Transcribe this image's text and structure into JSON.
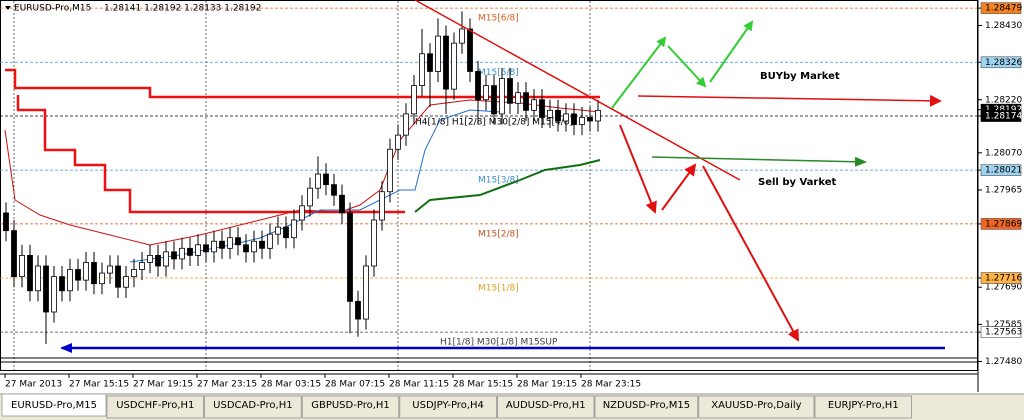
{
  "header": {
    "symbol": "EURUSD-Pro,M15",
    "quote": "1.28141 1.28192 1.28133 1.28192"
  },
  "chart_data": {
    "type": "candlestick",
    "ylim": [
      1.27456,
      1.28502
    ],
    "yticks": [
      1.28479,
      {
        "value": 1.2843,
        "label": "1.28430"
      },
      1.28326,
      {
        "value": 1.2822,
        "label": "1.28220"
      },
      1.28192,
      1.28174,
      {
        "value": 1.2807,
        "label": "1.28070"
      },
      1.28021,
      1.27965,
      1.27869,
      1.27716,
      {
        "value": 1.2769,
        "label": "1.27690"
      },
      1.27585,
      1.27563,
      {
        "value": 1.2748,
        "label": "1.27480"
      }
    ],
    "price_markers": [
      {
        "value": 1.28479,
        "color": "#f58220"
      },
      {
        "value": 1.28326,
        "color": "#9fd3f2"
      },
      {
        "value": 1.28192,
        "color": "#000000"
      },
      {
        "value": 1.28174,
        "color": "#000000"
      },
      {
        "value": 1.28021,
        "color": "#9fd3f2"
      },
      {
        "value": 1.27869,
        "color": "#f26522"
      },
      {
        "value": 1.27716,
        "color": "#ffb347"
      },
      {
        "value": 1.27563,
        "color": "#ffffff"
      }
    ],
    "categories": [
      "27 Mar 2013",
      "27 Mar 15:15",
      "27 Mar 19:15",
      "27 Mar 23:15",
      "28 Mar 03:15",
      "28 Mar 07:15",
      "28 Mar 11:15",
      "28 Mar 15:15",
      "28 Mar 19:15",
      "28 Mar 23:15"
    ],
    "levels": [
      {
        "label": "M15[6/8]",
        "value": 1.28479,
        "color": "#e0601a"
      },
      {
        "label": "M15[5/8]",
        "value": 1.28326,
        "color": "#3c8fd0"
      },
      {
        "label": "H4[1/8] H1[2/8] M30[2/8] M15[4/8]",
        "value": 1.28174,
        "color": "#000000"
      },
      {
        "label": "M15[3/8]",
        "value": 1.28021,
        "color": "#3c8fd0"
      },
      {
        "label": "M15[2/8]",
        "value": 1.27869,
        "color": "#c8501e"
      },
      {
        "label": "M15[1/8]",
        "value": 1.27716,
        "color": "#e0a020"
      },
      {
        "label": "H1[1/8] M30[1/8] M15SUP",
        "value": 1.27563,
        "color": "#404040"
      }
    ],
    "annotations": [
      "BUYby Market",
      "Sell by Varket"
    ],
    "up_color": "#000000",
    "down_color": "#000000",
    "candles": [
      [
        1.279,
        1.2793,
        1.2782,
        1.2785
      ],
      [
        1.2785,
        1.2788,
        1.2769,
        1.2772
      ],
      [
        1.2772,
        1.2781,
        1.2769,
        1.2778
      ],
      [
        1.2778,
        1.2781,
        1.2765,
        1.2768
      ],
      [
        1.2768,
        1.2778,
        1.2765,
        1.2775
      ],
      [
        1.2775,
        1.2778,
        1.2753,
        1.2762
      ],
      [
        1.2762,
        1.2775,
        1.2759,
        1.2772
      ],
      [
        1.2772,
        1.2775,
        1.2765,
        1.2768
      ],
      [
        1.2768,
        1.2777,
        1.2765,
        1.2774
      ],
      [
        1.2774,
        1.2777,
        1.2768,
        1.2771
      ],
      [
        1.2771,
        1.2779,
        1.2768,
        1.2776
      ],
      [
        1.2776,
        1.2779,
        1.2767,
        1.277
      ],
      [
        1.277,
        1.2776,
        1.2767,
        1.2773
      ],
      [
        1.2773,
        1.2778,
        1.277,
        1.2775
      ],
      [
        1.2775,
        1.2778,
        1.2766,
        1.2769
      ],
      [
        1.2769,
        1.2775,
        1.2766,
        1.2772
      ],
      [
        1.2772,
        1.2777,
        1.2769,
        1.2774
      ],
      [
        1.2774,
        1.2779,
        1.2771,
        1.2776
      ],
      [
        1.2776,
        1.2781,
        1.2773,
        1.2778
      ],
      [
        1.2778,
        1.2781,
        1.2772,
        1.2775
      ],
      [
        1.2775,
        1.2782,
        1.2772,
        1.2779
      ],
      [
        1.2779,
        1.2782,
        1.2774,
        1.2777
      ],
      [
        1.2777,
        1.2783,
        1.2774,
        1.278
      ],
      [
        1.278,
        1.2783,
        1.2775,
        1.2778
      ],
      [
        1.2778,
        1.2784,
        1.2775,
        1.2781
      ],
      [
        1.2781,
        1.2784,
        1.2776,
        1.2779
      ],
      [
        1.2779,
        1.2785,
        1.2776,
        1.2782
      ],
      [
        1.2782,
        1.2785,
        1.2777,
        1.278
      ],
      [
        1.278,
        1.2786,
        1.2777,
        1.2783
      ],
      [
        1.2783,
        1.2786,
        1.2778,
        1.2781
      ],
      [
        1.2781,
        1.2784,
        1.2776,
        1.2779
      ],
      [
        1.2779,
        1.2785,
        1.2776,
        1.2782
      ],
      [
        1.2782,
        1.2785,
        1.2777,
        1.278
      ],
      [
        1.278,
        1.2787,
        1.2777,
        1.2784
      ],
      [
        1.2784,
        1.2789,
        1.2781,
        1.2786
      ],
      [
        1.2786,
        1.2789,
        1.278,
        1.2783
      ],
      [
        1.2783,
        1.2791,
        1.278,
        1.2788
      ],
      [
        1.2788,
        1.2795,
        1.2785,
        1.2792
      ],
      [
        1.2792,
        1.28,
        1.2789,
        1.2797
      ],
      [
        1.2797,
        1.2806,
        1.2794,
        1.2801
      ],
      [
        1.2801,
        1.2804,
        1.2795,
        1.2798
      ],
      [
        1.2798,
        1.2801,
        1.2792,
        1.2795
      ],
      [
        1.2795,
        1.2798,
        1.2787,
        1.279
      ],
      [
        1.279,
        1.2793,
        1.2756,
        1.2765
      ],
      [
        1.2765,
        1.2768,
        1.2755,
        1.276
      ],
      [
        1.276,
        1.2778,
        1.2757,
        1.2775
      ],
      [
        1.2775,
        1.2791,
        1.2772,
        1.2788
      ],
      [
        1.2788,
        1.2799,
        1.2785,
        1.2796
      ],
      [
        1.2796,
        1.2811,
        1.2793,
        1.2808
      ],
      [
        1.2808,
        1.2815,
        1.2805,
        1.2812
      ],
      [
        1.2812,
        1.2821,
        1.2809,
        1.2818
      ],
      [
        1.2818,
        1.2829,
        1.2815,
        1.2826
      ],
      [
        1.2826,
        1.2842,
        1.2823,
        1.2835
      ],
      [
        1.2835,
        1.2838,
        1.282,
        1.283
      ],
      [
        1.283,
        1.2845,
        1.2827,
        1.284
      ],
      [
        1.284,
        1.2843,
        1.2818,
        1.2825
      ],
      [
        1.2825,
        1.2841,
        1.2822,
        1.2838
      ],
      [
        1.2838,
        1.2847,
        1.2835,
        1.2842
      ],
      [
        1.2842,
        1.2845,
        1.2827,
        1.283
      ],
      [
        1.283,
        1.2833,
        1.2815,
        1.2822
      ],
      [
        1.2822,
        1.2829,
        1.2819,
        1.2826
      ],
      [
        1.2826,
        1.2829,
        1.2815,
        1.2818
      ],
      [
        1.2818,
        1.2831,
        1.2815,
        1.2828
      ],
      [
        1.2828,
        1.2831,
        1.2818,
        1.2821
      ],
      [
        1.2821,
        1.2827,
        1.2818,
        1.2824
      ],
      [
        1.2824,
        1.2827,
        1.2816,
        1.2819
      ],
      [
        1.2819,
        1.2825,
        1.2816,
        1.2822
      ],
      [
        1.2822,
        1.2825,
        1.2814,
        1.2817
      ],
      [
        1.2817,
        1.2822,
        1.2814,
        1.2819
      ],
      [
        1.2819,
        1.2822,
        1.2813,
        1.2816
      ],
      [
        1.2816,
        1.2821,
        1.2813,
        1.2818
      ],
      [
        1.2818,
        1.2821,
        1.2812,
        1.2815
      ],
      [
        1.2815,
        1.282,
        1.2812,
        1.2817
      ],
      [
        1.2817,
        1.282,
        1.2813,
        1.2816
      ],
      [
        1.2816,
        1.2822,
        1.2813,
        1.2819
      ]
    ]
  },
  "tabs": [
    "EURUSD-Pro,M15",
    "USDCHF-Pro,H1",
    "USDCAD-Pro,H1",
    "GBPUSD-Pro,H1",
    "USDJPY-Pro,H4",
    "AUDUSD-Pro,H1",
    "NZDUSD-Pro,M15",
    "XAUUSD-Pro,Daily",
    "EURJPY-Pro,H1"
  ]
}
